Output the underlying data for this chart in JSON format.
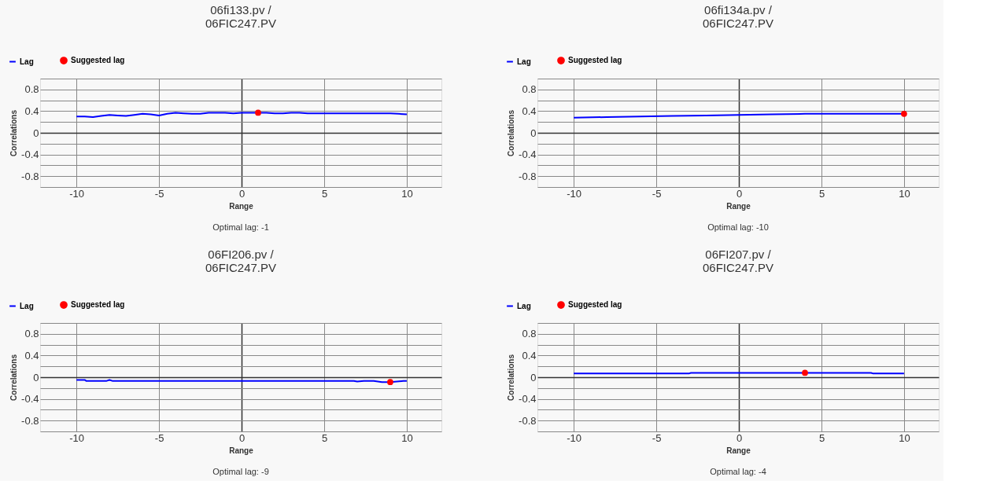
{
  "chart_data": [
    {
      "type": "line",
      "title": "06fi133.pv /\n06FIC247.PV",
      "xlabel": "Range",
      "ylabel": "Correlations",
      "legend": "top left",
      "grid": true,
      "xlim": [
        -12.2,
        12.1
      ],
      "xticks": [
        -10,
        -5,
        0,
        5,
        10
      ],
      "ylim": [
        -1,
        1
      ],
      "yticks": [
        {
          "value": -1,
          "label": null
        },
        -0.8,
        {
          "value": -0.6,
          "label": null
        },
        -0.4,
        {
          "value": -0.2,
          "label": null
        },
        0,
        {
          "value": 0.2,
          "label": null
        },
        0.4,
        {
          "value": 0.6,
          "label": null
        },
        0.8,
        {
          "value": 1,
          "label": null
        }
      ],
      "annotations": [
        "Optimal lag: -1"
      ],
      "series": [
        {
          "name": "Lag",
          "color": "#0000ff",
          "x": [
            -10,
            -9.5,
            -9,
            -8.5,
            -8,
            -7.5,
            -7,
            -6.5,
            -6,
            -5.5,
            -5,
            -4.5,
            -4,
            -3.5,
            -3,
            -2.5,
            -2,
            -1.5,
            -1,
            -0.5,
            0,
            0.5,
            1,
            1.5,
            2,
            2.5,
            3,
            3.5,
            4,
            5,
            6,
            7,
            8,
            9,
            9.5,
            10
          ],
          "values": [
            0.3,
            0.3,
            0.29,
            0.31,
            0.33,
            0.32,
            0.31,
            0.33,
            0.35,
            0.34,
            0.32,
            0.35,
            0.37,
            0.36,
            0.35,
            0.35,
            0.37,
            0.37,
            0.37,
            0.36,
            0.37,
            0.37,
            0.37,
            0.37,
            0.36,
            0.36,
            0.37,
            0.37,
            0.36,
            0.36,
            0.36,
            0.36,
            0.36,
            0.36,
            0.35,
            0.34
          ]
        },
        {
          "name": "Suggested lag",
          "type": "scatter",
          "color": "#ff0000",
          "x": [
            1
          ],
          "values": [
            0.37
          ]
        }
      ]
    },
    {
      "type": "line",
      "title": "06fi134a.pv /\n06FIC247.PV",
      "xlabel": "Range",
      "ylabel": "Correlations",
      "legend": "top left",
      "grid": true,
      "xlim": [
        -12.2,
        12.1
      ],
      "xticks": [
        -10,
        -5,
        0,
        5,
        10
      ],
      "ylim": [
        -1,
        1
      ],
      "yticks": [
        {
          "value": -1,
          "label": null
        },
        -0.8,
        {
          "value": -0.6,
          "label": null
        },
        -0.4,
        {
          "value": -0.2,
          "label": null
        },
        0,
        {
          "value": 0.2,
          "label": null
        },
        0.4,
        {
          "value": 0.6,
          "label": null
        },
        0.8,
        {
          "value": 1,
          "label": null
        }
      ],
      "annotations": [
        "Optimal lag: -10"
      ],
      "series": [
        {
          "name": "Lag",
          "color": "#0000ff",
          "x": [
            -10,
            -8,
            -6,
            -4,
            -2,
            0,
            2,
            4,
            6,
            8,
            10
          ],
          "values": [
            0.28,
            0.29,
            0.3,
            0.31,
            0.32,
            0.33,
            0.34,
            0.35,
            0.35,
            0.35,
            0.35
          ]
        },
        {
          "name": "Suggested lag",
          "type": "scatter",
          "color": "#ff0000",
          "x": [
            10
          ],
          "values": [
            0.35
          ]
        }
      ]
    },
    {
      "type": "line",
      "title": "06FI206.pv /\n06FIC247.PV",
      "xlabel": "Range",
      "ylabel": "Correlations",
      "legend": "top left",
      "grid": true,
      "xlim": [
        -12.2,
        12.1
      ],
      "xticks": [
        -10,
        -5,
        0,
        5,
        10
      ],
      "ylim": [
        -1,
        1
      ],
      "yticks": [
        {
          "value": -1,
          "label": null
        },
        -0.8,
        {
          "value": -0.6,
          "label": null
        },
        -0.4,
        {
          "value": -0.2,
          "label": null
        },
        0,
        {
          "value": 0.2,
          "label": null
        },
        0.4,
        {
          "value": 0.6,
          "label": null
        },
        0.8,
        {
          "value": 1,
          "label": null
        }
      ],
      "annotations": [
        "Optimal lag: -9"
      ],
      "series": [
        {
          "name": "Lag",
          "color": "#0000ff",
          "x": [
            -10,
            -9.5,
            -9.4,
            -8.2,
            -8,
            -7.8,
            -5,
            0,
            5,
            6.8,
            7,
            7.4,
            8,
            8.5,
            9,
            9.8,
            10
          ],
          "values": [
            -0.05,
            -0.05,
            -0.07,
            -0.07,
            -0.05,
            -0.07,
            -0.07,
            -0.07,
            -0.07,
            -0.07,
            -0.08,
            -0.07,
            -0.07,
            -0.09,
            -0.09,
            -0.07,
            -0.07
          ]
        },
        {
          "name": "Suggested lag",
          "type": "scatter",
          "color": "#ff0000",
          "x": [
            9
          ],
          "values": [
            -0.09
          ]
        }
      ]
    },
    {
      "type": "line",
      "title": "06FI207.pv /\n06FIC247.PV",
      "xlabel": "Range",
      "ylabel": "Correlations",
      "legend": "top left",
      "grid": true,
      "xlim": [
        -12.2,
        12.1
      ],
      "xticks": [
        -10,
        -5,
        0,
        5,
        10
      ],
      "ylim": [
        -1,
        1
      ],
      "yticks": [
        {
          "value": -1,
          "label": null
        },
        -0.8,
        {
          "value": -0.6,
          "label": null
        },
        -0.4,
        {
          "value": -0.2,
          "label": null
        },
        0,
        {
          "value": 0.2,
          "label": null
        },
        0.4,
        {
          "value": 0.6,
          "label": null
        },
        0.8,
        {
          "value": 1,
          "label": null
        }
      ],
      "annotations": [
        "Optimal lag: -4"
      ],
      "series": [
        {
          "name": "Lag",
          "color": "#0000ff",
          "x": [
            -10,
            -5,
            -3,
            -2.9,
            0,
            4,
            8,
            8.1,
            10
          ],
          "values": [
            0.07,
            0.07,
            0.07,
            0.08,
            0.08,
            0.08,
            0.08,
            0.07,
            0.07
          ]
        },
        {
          "name": "Suggested lag",
          "type": "scatter",
          "color": "#ff0000",
          "x": [
            4
          ],
          "values": [
            0.08
          ]
        }
      ]
    }
  ]
}
